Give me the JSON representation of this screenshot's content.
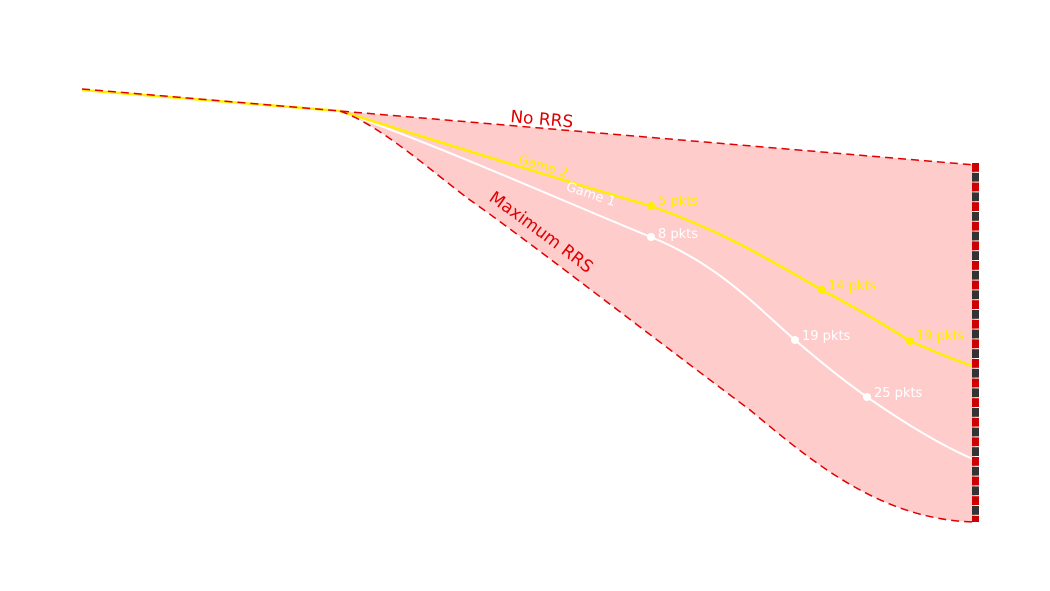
{
  "chart_data": {
    "type": "area",
    "title": "",
    "xlabel": "",
    "ylabel": "",
    "grid": false,
    "colors": {
      "envelope_fill": "#ffcccc",
      "bound_line": "#e00000",
      "game2": "#ffee00",
      "game1": "#ffffff",
      "bar_red": "#cc0000",
      "bar_dark": "#333333"
    },
    "bounds": [
      {
        "name": "No RRS",
        "label": "No RRS"
      },
      {
        "name": "Maximum RRS",
        "label": "Maximum RRS"
      }
    ],
    "series": [
      {
        "name": "Game 2",
        "label": "Game 2",
        "points": [
          {
            "label": "5 pkts"
          },
          {
            "label": "14 pkts"
          },
          {
            "label": "19 pkts"
          }
        ]
      },
      {
        "name": "Game 1",
        "label": "Game 1",
        "points": [
          {
            "label": "8 pkts"
          },
          {
            "label": "19 pkts"
          },
          {
            "label": "25 pkts"
          }
        ]
      }
    ]
  }
}
